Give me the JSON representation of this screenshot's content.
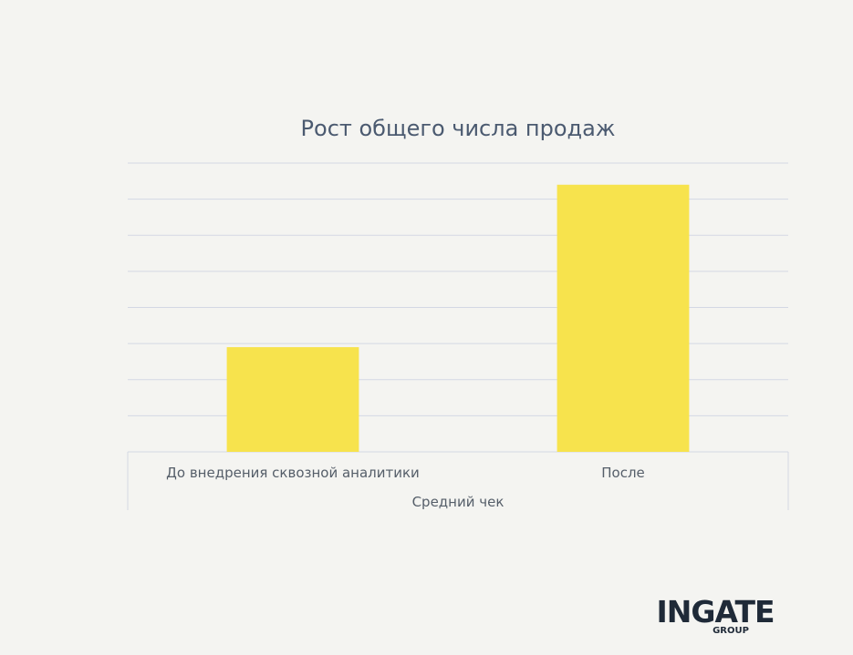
{
  "chart_data": {
    "type": "bar",
    "title": "Рост общего числа продаж",
    "categories": [
      "До внедрения сквозной аналитики",
      "После"
    ],
    "values": [
      29,
      74
    ],
    "xlabel": "Средний чек",
    "ylabel": "",
    "ylim": [
      0,
      80
    ],
    "grid": true,
    "bar_color": "#f7e34d",
    "grid_color": "#d3d8e4"
  },
  "logo": {
    "main": "INGATE",
    "sub": "GROUP"
  }
}
